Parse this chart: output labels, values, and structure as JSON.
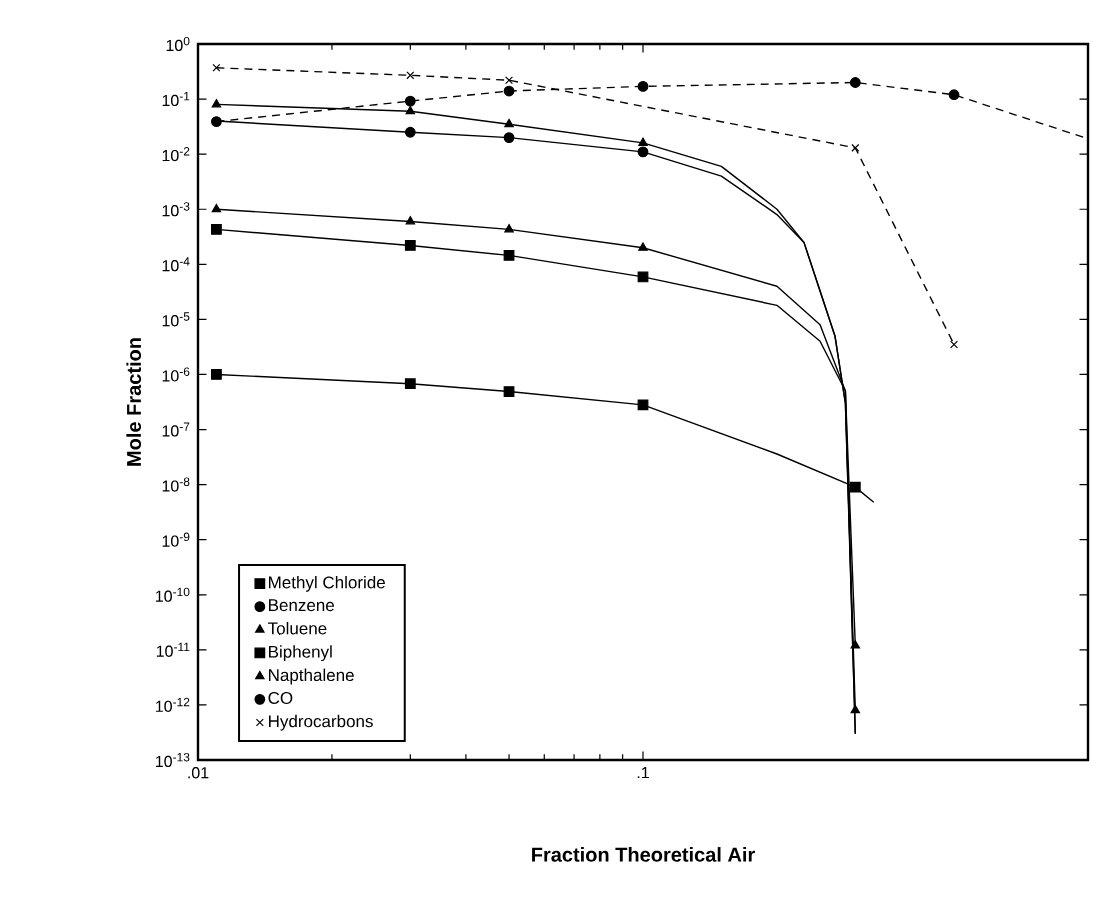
{
  "chart_data": {
    "type": "scatter",
    "xlabel": "Fraction Theoretical Air",
    "ylabel": "Mole  Fraction",
    "log": "xy",
    "legend": "bottom left",
    "xlim": [
      0.01,
      1
    ],
    "ylim": [
      1e-13,
      1
    ],
    "xticks": [
      {
        "value": 0.01,
        "label": ".01"
      },
      {
        "value": 0.1,
        "label": ".1"
      }
    ],
    "yticks": [
      {
        "value": 1,
        "label": "10$^{0}$"
      },
      {
        "value": 0.1,
        "label": "10$^{-1}$"
      },
      {
        "value": 0.01,
        "label": "10$^{-2}$"
      },
      {
        "value": 0.001,
        "label": "10$^{-3}$"
      },
      {
        "value": 0.0001,
        "label": "10$^{-4}$"
      },
      {
        "value": 1e-05,
        "label": "10$^{-5}$"
      },
      {
        "value": 1e-06,
        "label": "10$^{-6}$"
      },
      {
        "value": 1e-07,
        "label": "10$^{-7}$"
      },
      {
        "value": 1e-08,
        "label": "10$^{-8}$"
      },
      {
        "value": 1e-09,
        "label": "10$^{-9}$"
      },
      {
        "value": 1e-10,
        "label": "10$^{-10}$"
      },
      {
        "value": 1e-11,
        "label": "10$^{-11}$"
      },
      {
        "value": 1e-12,
        "label": "10$^{-12}$"
      },
      {
        "value": 1e-13,
        "label": "10$^{-13}$"
      }
    ],
    "series": [
      {
        "type": "line",
        "marker": "none",
        "line_style": "solid",
        "color": "#000000",
        "x": [
          0.011,
          0.03,
          0.05,
          0.1,
          0.2,
          0.3,
          0.33
        ],
        "values": [
          1e-06,
          6.8e-07,
          4.9e-07,
          2.8e-07,
          3.6e-08,
          9e-09,
          4.8e-09
        ]
      },
      {
        "type": "line",
        "marker": "none",
        "line_style": "solid",
        "color": "#000000",
        "x": [
          0.011,
          0.03,
          0.05,
          0.1,
          0.15,
          0.2,
          0.23,
          0.27,
          0.285,
          0.3
        ],
        "values": [
          0.04,
          0.025,
          0.02,
          0.011,
          0.004,
          0.0008,
          0.00025,
          5e-06,
          3e-07,
          3e-13
        ]
      },
      {
        "type": "line",
        "marker": "none",
        "line_style": "solid",
        "color": "#000000",
        "x": [
          0.011,
          0.03,
          0.05,
          0.1,
          0.2,
          0.25,
          0.285,
          0.3
        ],
        "values": [
          0.001,
          0.0006,
          0.00043,
          0.0002,
          4e-05,
          8e-06,
          5e-07,
          1.2e-11
        ]
      },
      {
        "type": "line",
        "marker": "none",
        "line_style": "solid",
        "color": "#000000",
        "x": [
          0.011,
          0.03,
          0.05,
          0.1,
          0.2,
          0.25,
          0.285,
          0.3
        ],
        "values": [
          0.00043,
          0.00022,
          0.000145,
          5.9e-05,
          1.8e-05,
          4e-06,
          5e-07,
          3e-13
        ]
      },
      {
        "type": "line",
        "marker": "none",
        "line_style": "solid",
        "color": "#000000",
        "x": [
          0.011,
          0.03,
          0.05,
          0.1,
          0.15,
          0.2,
          0.23,
          0.27,
          0.285,
          0.3
        ],
        "values": [
          0.08,
          0.06,
          0.035,
          0.016,
          0.006,
          0.001,
          0.00025,
          5e-06,
          3e-07,
          8e-13
        ]
      },
      {
        "type": "line",
        "marker": "none",
        "line_style": "dashed",
        "color": "#000000",
        "x": [
          0.011,
          0.03,
          0.05,
          0.1,
          0.3,
          0.5,
          1
        ],
        "values": [
          0.039,
          0.092,
          0.14,
          0.17,
          0.2,
          0.12,
          0.019
        ]
      },
      {
        "type": "line",
        "marker": "none",
        "line_style": "dashed",
        "color": "#000000",
        "x": [
          0.011,
          0.03,
          0.05,
          0.3,
          0.5
        ],
        "values": [
          0.37,
          0.27,
          0.22,
          0.013,
          3.5e-06
        ]
      },
      {
        "name": "Methyl Chloride",
        "marker": "square",
        "color": "#000000",
        "x": [
          0.011,
          0.03,
          0.05,
          0.1,
          0.3
        ],
        "values": [
          1e-06,
          6.8e-07,
          4.9e-07,
          2.8e-07,
          9e-09
        ]
      },
      {
        "name": "Benzene",
        "marker": "circle",
        "color": "#000000",
        "x": [
          0.03,
          0.05,
          0.1
        ],
        "values": [
          0.025,
          0.02,
          0.011
        ]
      },
      {
        "name": "Toluene",
        "marker": "triangle",
        "color": "#000000",
        "x": [
          0.011,
          0.03,
          0.05,
          0.1,
          0.3
        ],
        "values": [
          0.001,
          0.0006,
          0.00043,
          0.0002,
          1.2e-11
        ]
      },
      {
        "name": "Biphenyl",
        "marker": "square",
        "color": "#000000",
        "x": [
          0.011,
          0.03,
          0.05,
          0.1
        ],
        "values": [
          0.00043,
          0.00022,
          0.000145,
          5.9e-05
        ]
      },
      {
        "name": "Napthalene",
        "marker": "triangle",
        "color": "#000000",
        "x": [
          0.011,
          0.03,
          0.05,
          0.1,
          0.3
        ],
        "values": [
          0.08,
          0.06,
          0.035,
          0.016,
          8e-13
        ]
      },
      {
        "name": "CO",
        "marker": "circle",
        "color": "#000000",
        "x": [
          0.011,
          0.03,
          0.05,
          0.1,
          0.3,
          0.5
        ],
        "values": [
          0.039,
          0.092,
          0.14,
          0.17,
          0.2,
          0.12
        ]
      },
      {
        "name": "Hydrocarbons",
        "marker": "cross",
        "color": "#000000",
        "x": [
          0.011,
          0.03,
          0.05,
          0.3,
          0.5
        ],
        "values": [
          0.37,
          0.27,
          0.22,
          0.013,
          3.5e-06
        ]
      }
    ]
  }
}
